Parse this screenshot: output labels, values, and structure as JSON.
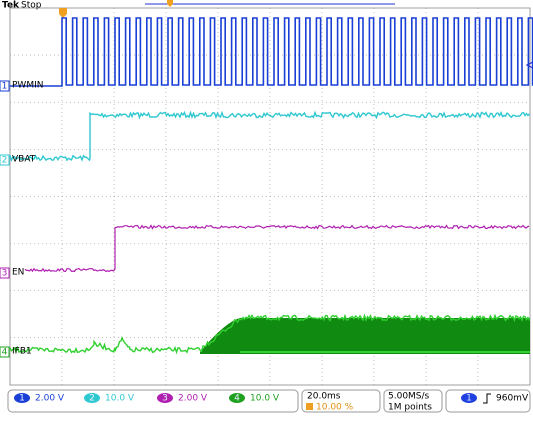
{
  "header": {
    "brand": "Tek",
    "status": "Stop"
  },
  "channels": [
    {
      "number": "1",
      "label": "PWMIN",
      "scale": "2.00 V"
    },
    {
      "number": "2",
      "label": "VBAT",
      "scale": "10.0 V"
    },
    {
      "number": "3",
      "label": "EN",
      "scale": "2.00 V"
    },
    {
      "number": "4",
      "label": "IFB1",
      "scale": "10.0 V"
    }
  ],
  "timebase": {
    "scale": "20.0ms",
    "position": "10.00 %"
  },
  "acquisition": {
    "rate": "5.00MS/s",
    "length": "1M points"
  },
  "trigger": {
    "source": "1",
    "level": "960mV"
  }
}
